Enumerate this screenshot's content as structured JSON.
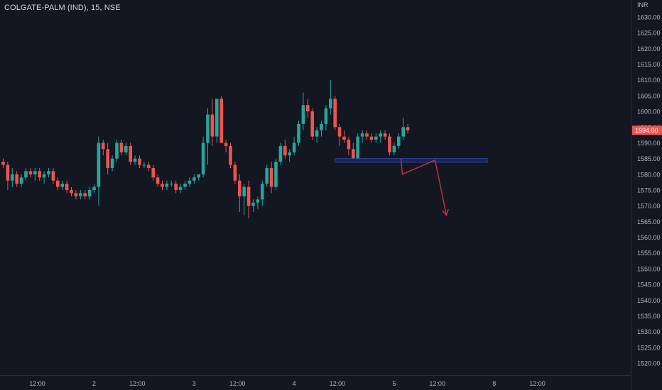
{
  "symbol": {
    "name": "COLGATE-PALM (IND)",
    "interval": "15",
    "exchange": "NSE",
    "title": "COLGATE-PALM (IND), 15, NSE"
  },
  "colors": {
    "background": "#131722",
    "up": "#26a69a",
    "down": "#ef5350",
    "axis_text": "#b2b5be",
    "axis_line": "#2a2e39",
    "last_price_bg": "#ef5350",
    "zone_border": "#2f3f9e",
    "zone_fill": "#1c2550",
    "arrow": "#c62d3b"
  },
  "chart_data": {
    "type": "candlestick",
    "currency": "INR",
    "ylim": [
      1516,
      1634
    ],
    "y_ticks": [
      "1520.00",
      "1525.00",
      "1530.00",
      "1535.00",
      "1540.00",
      "1545.00",
      "1550.00",
      "1555.00",
      "1560.00",
      "1565.00",
      "1570.00",
      "1575.00",
      "1580.00",
      "1585.00",
      "1590.00",
      "1595.00",
      "1600.00",
      "1605.00",
      "1610.00",
      "1615.00",
      "1620.00",
      "1625.00",
      "1630.00"
    ],
    "x_ticks": [
      {
        "label": "12:00",
        "bar": 7.5
      },
      {
        "label": "2",
        "bar": 20.0
      },
      {
        "label": "12:00",
        "bar": 29.5
      },
      {
        "label": "3",
        "bar": 42.0
      },
      {
        "label": "12:00",
        "bar": 51.5
      },
      {
        "label": "4",
        "bar": 64.0
      },
      {
        "label": "12:00",
        "bar": 73.5
      },
      {
        "label": "5",
        "bar": 86.0
      },
      {
        "label": "12:00",
        "bar": 95.5
      },
      {
        "label": "8",
        "bar": 108.0
      },
      {
        "label": "12:00",
        "bar": 117.5
      }
    ],
    "last_price": "1594.00",
    "last_price_value": 1594.0,
    "grid": false,
    "candles": [
      [
        1584,
        1585,
        1582,
        1583
      ],
      [
        1583,
        1584,
        1575,
        1578
      ],
      [
        1578,
        1582,
        1576,
        1580
      ],
      [
        1580,
        1581,
        1576,
        1577
      ],
      [
        1577,
        1580,
        1576,
        1579
      ],
      [
        1579,
        1582,
        1578,
        1581
      ],
      [
        1581,
        1582,
        1579,
        1580
      ],
      [
        1580,
        1582,
        1578,
        1581
      ],
      [
        1581,
        1582,
        1578,
        1579
      ],
      [
        1579,
        1581,
        1577,
        1580
      ],
      [
        1580,
        1582,
        1579,
        1581
      ],
      [
        1581,
        1582,
        1577,
        1578
      ],
      [
        1578,
        1579,
        1575,
        1576
      ],
      [
        1576,
        1578,
        1575,
        1577
      ],
      [
        1577,
        1578,
        1574,
        1575
      ],
      [
        1575,
        1576,
        1573,
        1574
      ],
      [
        1574,
        1575,
        1572,
        1573
      ],
      [
        1573,
        1575,
        1572,
        1574
      ],
      [
        1574,
        1575,
        1572,
        1573
      ],
      [
        1573,
        1576,
        1572,
        1575
      ],
      [
        1575,
        1577,
        1574,
        1576
      ],
      [
        1576,
        1592,
        1570,
        1590
      ],
      [
        1590,
        1591,
        1586,
        1588
      ],
      [
        1588,
        1590,
        1580,
        1582
      ],
      [
        1582,
        1586,
        1581,
        1585
      ],
      [
        1585,
        1591,
        1584,
        1590
      ],
      [
        1590,
        1591,
        1586,
        1587
      ],
      [
        1587,
        1590,
        1586,
        1589
      ],
      [
        1589,
        1590,
        1583,
        1584
      ],
      [
        1584,
        1586,
        1583,
        1585
      ],
      [
        1585,
        1586,
        1582,
        1583
      ],
      [
        1583,
        1584,
        1582,
        1583
      ],
      [
        1583,
        1584,
        1581,
        1582
      ],
      [
        1582,
        1583,
        1578,
        1579
      ],
      [
        1579,
        1580,
        1576,
        1577
      ],
      [
        1577,
        1578,
        1575,
        1576
      ],
      [
        1576,
        1578,
        1575,
        1577
      ],
      [
        1577,
        1578,
        1576,
        1577
      ],
      [
        1577,
        1578,
        1574,
        1575
      ],
      [
        1575,
        1577,
        1574,
        1576
      ],
      [
        1576,
        1578,
        1575,
        1577
      ],
      [
        1577,
        1579,
        1576,
        1578
      ],
      [
        1578,
        1580,
        1577,
        1579
      ],
      [
        1579,
        1580,
        1578,
        1580
      ],
      [
        1580,
        1592,
        1579,
        1590
      ],
      [
        1590,
        1601,
        1583,
        1599
      ],
      [
        1599,
        1604,
        1589,
        1592
      ],
      [
        1592,
        1604,
        1590,
        1604
      ],
      [
        1604,
        1605,
        1590,
        1590
      ],
      [
        1590,
        1591,
        1587,
        1589
      ],
      [
        1589,
        1590,
        1582,
        1583
      ],
      [
        1583,
        1584,
        1577,
        1578
      ],
      [
        1578,
        1580,
        1568,
        1573
      ],
      [
        1573,
        1577,
        1567,
        1576
      ],
      [
        1576,
        1578,
        1566,
        1570
      ],
      [
        1570,
        1572,
        1568,
        1571
      ],
      [
        1571,
        1573,
        1569,
        1572
      ],
      [
        1572,
        1578,
        1570,
        1577
      ],
      [
        1577,
        1583,
        1576,
        1582
      ],
      [
        1582,
        1584,
        1574,
        1576
      ],
      [
        1576,
        1585,
        1575,
        1584
      ],
      [
        1584,
        1590,
        1583,
        1589
      ],
      [
        1589,
        1591,
        1585,
        1586
      ],
      [
        1586,
        1588,
        1584,
        1587
      ],
      [
        1587,
        1592,
        1586,
        1590
      ],
      [
        1590,
        1597,
        1589,
        1596
      ],
      [
        1596,
        1606,
        1594,
        1602
      ],
      [
        1602,
        1604,
        1598,
        1600
      ],
      [
        1600,
        1601,
        1591,
        1592
      ],
      [
        1592,
        1595,
        1590,
        1594
      ],
      [
        1594,
        1597,
        1592,
        1596
      ],
      [
        1596,
        1602,
        1594,
        1601
      ],
      [
        1601,
        1610,
        1599,
        1604
      ],
      [
        1604,
        1605,
        1594,
        1595
      ],
      [
        1595,
        1596,
        1589,
        1592
      ],
      [
        1592,
        1594,
        1590,
        1591
      ],
      [
        1591,
        1592,
        1586,
        1588
      ],
      [
        1588,
        1590,
        1584,
        1585
      ],
      [
        1585,
        1593,
        1584,
        1592
      ],
      [
        1592,
        1594,
        1590,
        1593
      ],
      [
        1593,
        1594,
        1591,
        1592
      ],
      [
        1592,
        1593,
        1590,
        1591
      ],
      [
        1591,
        1593,
        1590,
        1592
      ],
      [
        1592,
        1594,
        1590,
        1593
      ],
      [
        1593,
        1594,
        1591,
        1592
      ],
      [
        1592,
        1593,
        1586,
        1587
      ],
      [
        1587,
        1590,
        1586,
        1589
      ],
      [
        1589,
        1593,
        1588,
        1592
      ],
      [
        1592,
        1598,
        1591,
        1595
      ],
      [
        1595,
        1596,
        1593,
        1594
      ]
    ],
    "annotations": {
      "zone": {
        "bar_start": 73.0,
        "bar_end": 106.5,
        "price_top": 1585.0,
        "price_bottom": 1583.8
      },
      "arrow_path": [
        [
          87.5,
          1585.0
        ],
        [
          87.8,
          1580.0
        ],
        [
          95.0,
          1584.5
        ],
        [
          97.5,
          1567.0
        ]
      ]
    }
  }
}
